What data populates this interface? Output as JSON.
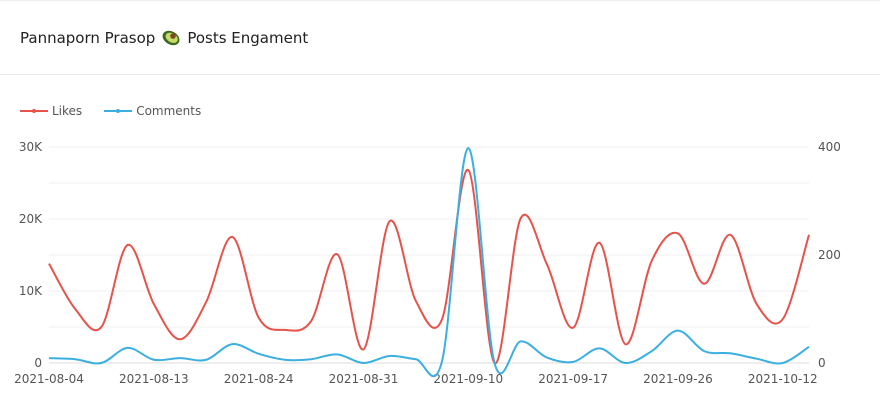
{
  "header": {
    "name": "Pannaporn Prasop",
    "icon": "avocado-icon",
    "suffix": "Posts Engament"
  },
  "chart_data": {
    "type": "line",
    "title": "Pannaporn Prasop Posts Engament",
    "legend": [
      "Likes",
      "Comments"
    ],
    "legend_position": "top-left",
    "x_tick_labels": [
      "2021-08-04",
      "2021-08-13",
      "2021-08-24",
      "2021-08-31",
      "2021-09-10",
      "2021-09-17",
      "2021-09-26",
      "2021-10-12"
    ],
    "x_tick_every": 4,
    "y_left": {
      "ticks": [
        "0",
        "10K",
        "20K",
        "30K"
      ],
      "range": [
        0,
        30000
      ]
    },
    "y_right": {
      "ticks": [
        "0",
        "200",
        "400"
      ],
      "range": [
        0,
        400
      ]
    },
    "series": [
      {
        "name": "Likes",
        "axis": "left",
        "color": "#e5534b",
        "values": [
          13800,
          7500,
          5000,
          16400,
          8200,
          3300,
          8500,
          17500,
          6300,
          4600,
          5800,
          15100,
          1900,
          19700,
          8600,
          6100,
          26800,
          0,
          20100,
          13700,
          4900,
          16700,
          2600,
          14200,
          18000,
          11000,
          17800,
          8200,
          6100,
          17800
        ]
      },
      {
        "name": "Comments",
        "axis": "right",
        "color": "#3bafe0",
        "values": [
          9,
          7,
          0,
          28,
          6,
          9,
          6,
          35,
          17,
          6,
          7,
          16,
          0,
          13,
          7,
          4,
          398,
          0,
          40,
          10,
          2,
          27,
          0,
          22,
          60,
          22,
          18,
          8,
          0,
          30
        ]
      }
    ]
  }
}
